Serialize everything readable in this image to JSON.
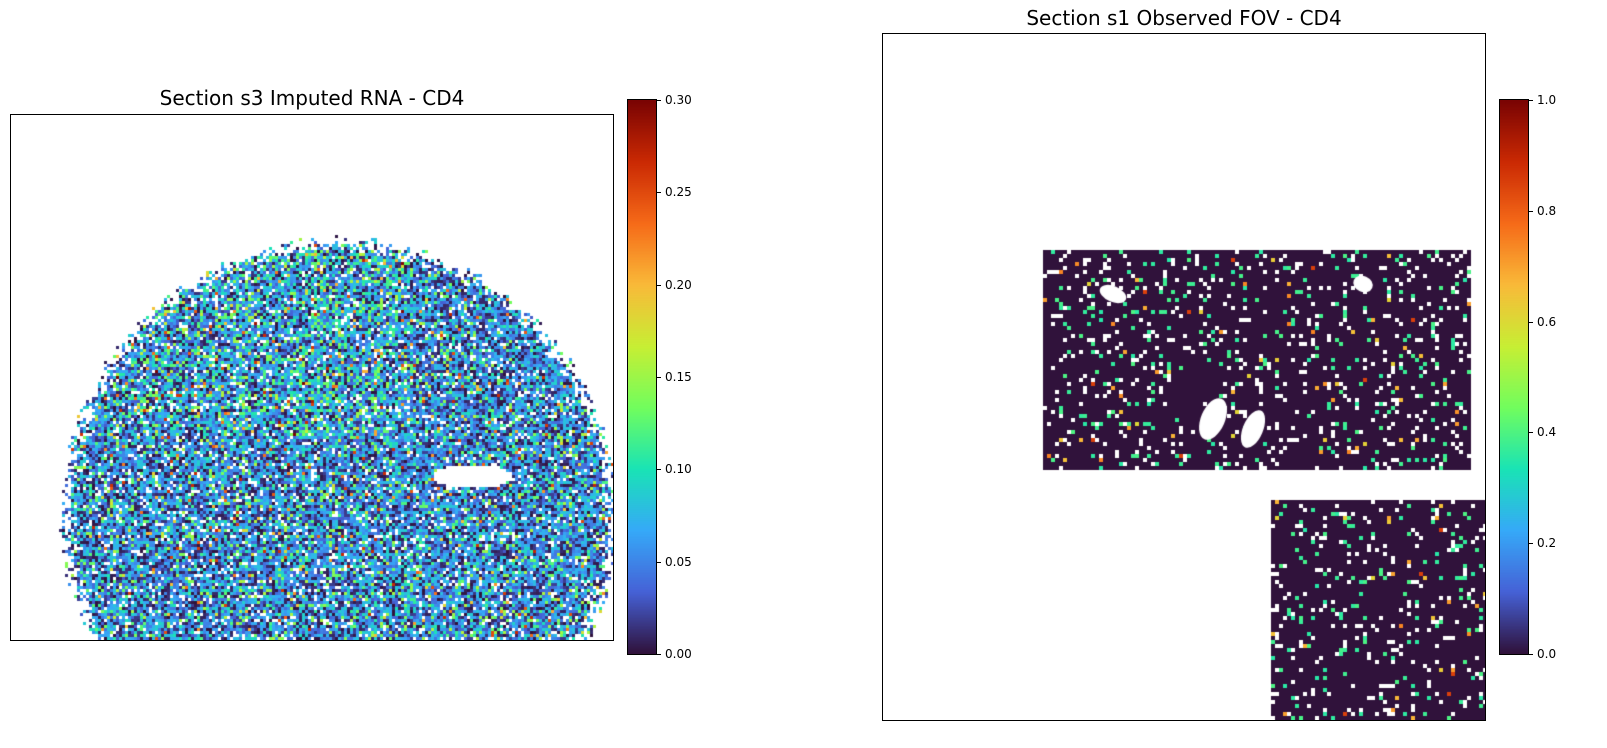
{
  "chart_data": [
    {
      "type": "heatmap",
      "title": "Section s3 Imputed RNA - CD4",
      "xlabel": "",
      "ylabel": "",
      "colormap": "turbo",
      "color_range": [
        0,
        0.3
      ],
      "colorbar_ticks": [
        "0.00",
        "0.05",
        "0.10",
        "0.15",
        "0.20",
        "0.25",
        "0.30"
      ],
      "colorbar_tick_values": [
        0,
        0.05,
        0.1,
        0.15,
        0.2,
        0.25,
        0.3
      ],
      "grid": false,
      "axis_ticks": false,
      "tissue_shape": "disc",
      "typical_value": 0.06,
      "max_value": 0.3
    },
    {
      "type": "heatmap",
      "title": "Section s1 Observed FOV - CD4",
      "xlabel": "",
      "ylabel": "",
      "colormap": "turbo",
      "color_range": [
        0,
        1
      ],
      "colorbar_ticks": [
        "0.0",
        "0.2",
        "0.4",
        "0.6",
        "0.8",
        "1.0"
      ],
      "colorbar_tick_values": [
        0,
        0.2,
        0.4,
        0.6,
        0.8,
        1.0
      ],
      "grid": false,
      "axis_ticks": false,
      "tissue_shape": "two rectangular FOV regions",
      "background_value": 0.0,
      "sparse_value": 0.1,
      "max_value": 1.0
    }
  ],
  "colors": {
    "turbo_stops": [
      "#30123b",
      "#4662d7",
      "#36aaf9",
      "#1ae4b6",
      "#72fe5e",
      "#c8ef34",
      "#faba39",
      "#f66b19",
      "#cb2a04",
      "#7a0403"
    ]
  }
}
